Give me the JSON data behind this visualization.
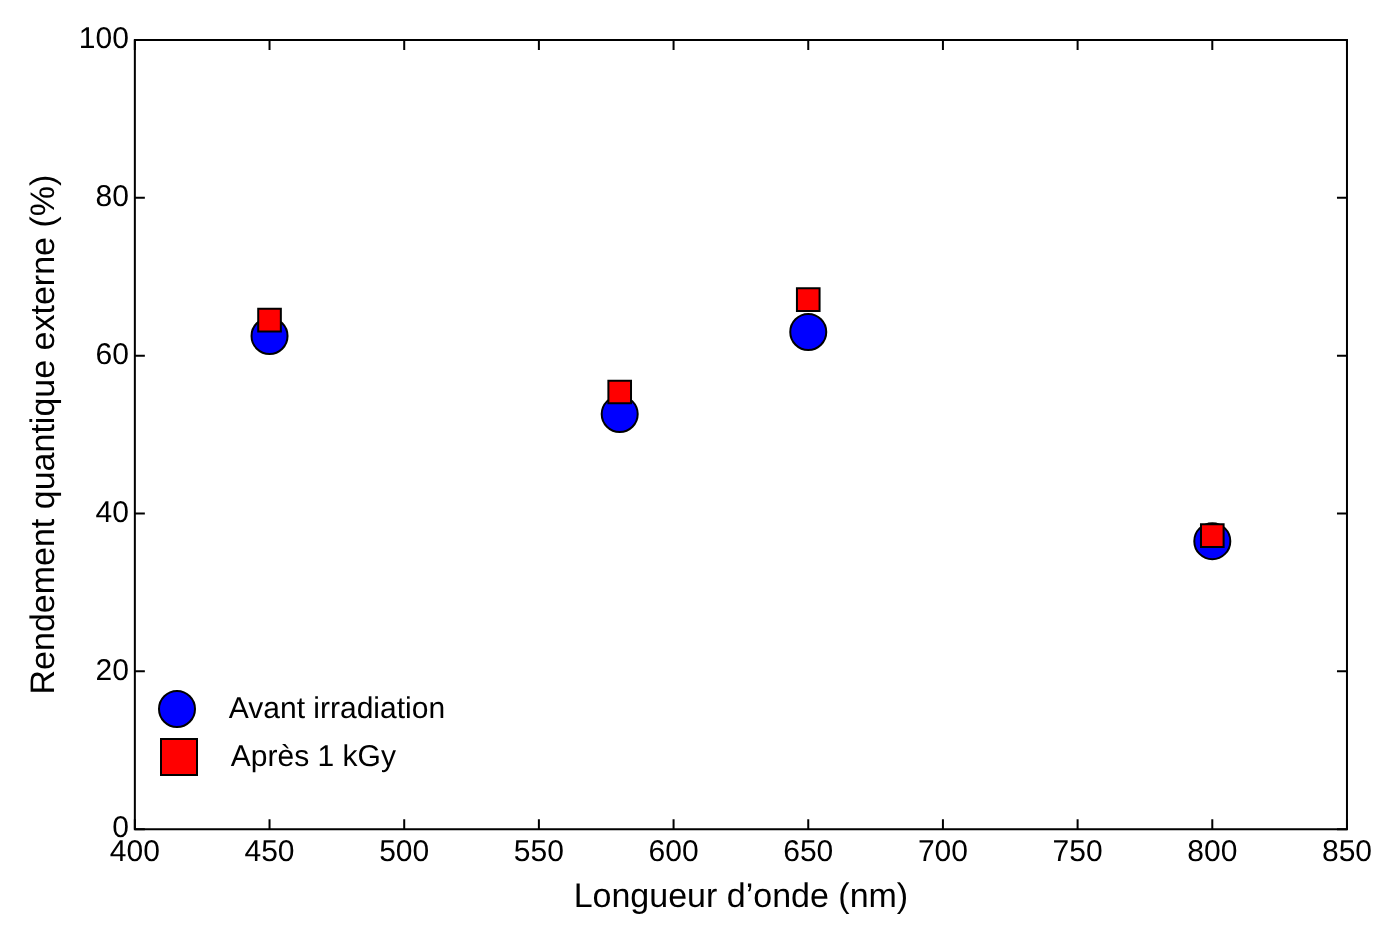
{
  "chart_data": {
    "type": "scatter",
    "xlabel": "Longueur d’onde (nm)",
    "ylabel": "Rendement quantique externe (%)",
    "x": [
      450,
      580,
      650,
      800
    ],
    "series": [
      {
        "name": "Avant irradiation",
        "color": "#0000ff",
        "marker": "circle",
        "values": [
          62.5,
          52.6,
          63.0,
          36.5
        ]
      },
      {
        "name": "Après 1 kGy",
        "color": "#ff0000",
        "marker": "square",
        "values": [
          64.5,
          55.4,
          67.1,
          37.2
        ]
      }
    ],
    "xlim": [
      400,
      850
    ],
    "xticks": [
      400,
      450,
      500,
      550,
      600,
      650,
      700,
      750,
      800,
      850
    ],
    "ylim": [
      0,
      100
    ],
    "yticks": [
      0,
      20,
      40,
      60,
      80,
      100
    ],
    "legend": "bottom left"
  }
}
